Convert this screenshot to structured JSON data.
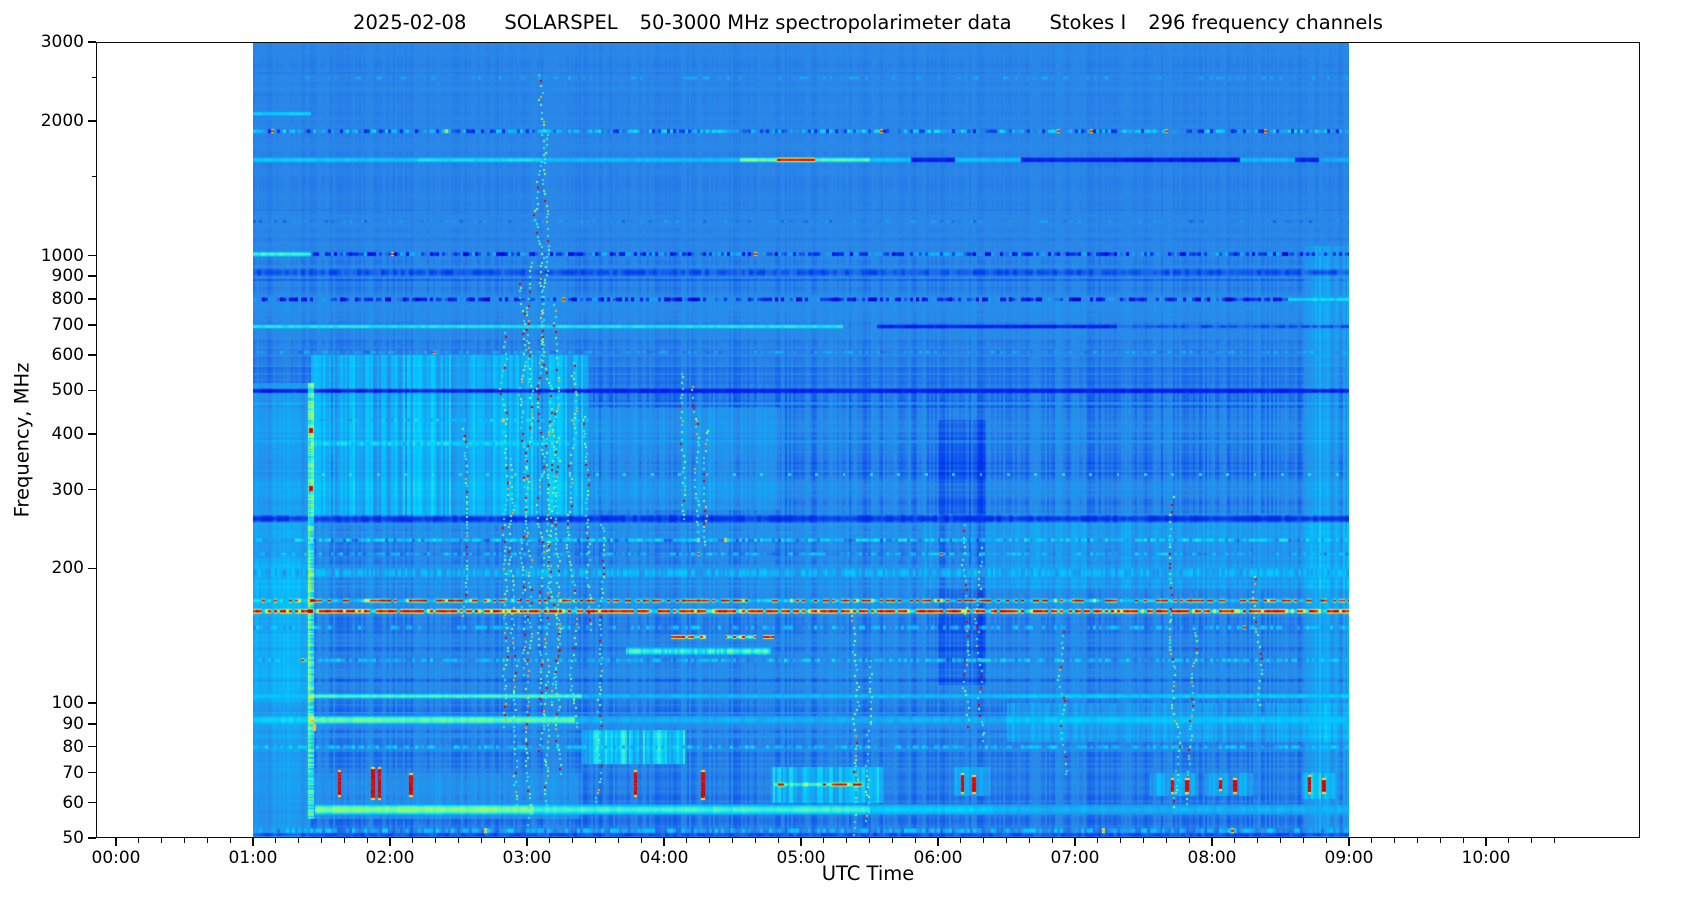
{
  "chart_data": {
    "type": "heatmap",
    "title_parts": [
      "2025-02-08",
      "SOLARSPEL",
      "50-3000 MHz spectropolarimeter data",
      "Stokes I",
      "296 frequency channels"
    ],
    "xlabel": "UTC Time",
    "ylabel": "Frequency, MHz",
    "x_tick_labels": [
      "00:00",
      "01:00",
      "02:00",
      "03:00",
      "04:00",
      "05:00",
      "06:00",
      "07:00",
      "08:00",
      "09:00",
      "10:00"
    ],
    "x_minor_step_minutes": 10,
    "y_tick_labels": [
      "3000",
      "2000",
      "1000",
      "900",
      "800",
      "700",
      "600",
      "500",
      "400",
      "300",
      "200",
      "100",
      "90",
      "80",
      "70",
      "60",
      "50"
    ],
    "y_minor_ticks": [
      2500,
      1500
    ],
    "y_scale": "log",
    "y_range": [
      50,
      3000
    ],
    "n_channels": 296,
    "data_time_range": [
      1.0,
      9.0
    ],
    "background_value": 0.25,
    "colormap_stops": [
      [
        0.0,
        "#00007f"
      ],
      [
        0.1,
        "#0000e0"
      ],
      [
        0.18,
        "#0038f0"
      ],
      [
        0.25,
        "#2b87e8"
      ],
      [
        0.32,
        "#15a8f5"
      ],
      [
        0.4,
        "#00d0ff"
      ],
      [
        0.48,
        "#40f0d8"
      ],
      [
        0.55,
        "#80ff80"
      ],
      [
        0.62,
        "#b8ff58"
      ],
      [
        0.7,
        "#ffe838"
      ],
      [
        0.78,
        "#ffa818"
      ],
      [
        0.86,
        "#ff5000"
      ],
      [
        0.94,
        "#e80000"
      ],
      [
        1.0,
        "#b00000"
      ]
    ],
    "bands": [
      {
        "f": 2500,
        "th": 3,
        "style": "speckle",
        "v": 0.31,
        "amp": 0.05,
        "den": 0.3,
        "rare": 0.012
      },
      {
        "f": 2080,
        "th": 4,
        "style": "segments",
        "segs": [
          [
            1.0,
            1.42,
            0.42
          ]
        ]
      },
      {
        "f": 1900,
        "th": 4,
        "style": "speckle",
        "v": 0.3,
        "amp": 0.17,
        "den": 0.9,
        "rare": 0.02
      },
      {
        "f": 1640,
        "th": 5,
        "style": "segments",
        "segs": [
          [
            1.0,
            2.2,
            0.4
          ],
          [
            2.2,
            3.1,
            0.44
          ],
          [
            3.1,
            4.55,
            0.37
          ],
          [
            4.55,
            4.82,
            0.55
          ],
          [
            4.82,
            5.1,
            0.96
          ],
          [
            5.1,
            5.5,
            0.52
          ],
          [
            5.5,
            5.8,
            0.4
          ],
          [
            5.8,
            6.12,
            0.13
          ],
          [
            6.12,
            6.6,
            0.38
          ],
          [
            6.6,
            7.25,
            0.13
          ],
          [
            7.25,
            8.2,
            0.11
          ],
          [
            8.2,
            8.6,
            0.36
          ],
          [
            8.6,
            8.78,
            0.14
          ],
          [
            8.78,
            9.0,
            0.33
          ]
        ]
      },
      {
        "f": 1195,
        "th": 3,
        "style": "speckle",
        "v": 0.27,
        "amp": 0.06,
        "den": 0.35,
        "rare": 0.003
      },
      {
        "f": 1010,
        "th": 4,
        "style": "speckle",
        "v": 0.22,
        "amp": 0.16,
        "den": 0.9,
        "rare": 0.006
      },
      {
        "f": 1010,
        "th": 5,
        "style": "segments",
        "segs": [
          [
            1.0,
            1.42,
            0.5
          ]
        ]
      },
      {
        "f": 919,
        "th": 8,
        "style": "segments",
        "segs": [
          [
            1.0,
            9.0,
            0.205
          ]
        ]
      },
      {
        "f": 800,
        "th": 4,
        "style": "speckle",
        "v": 0.17,
        "amp": 0.15,
        "den": 0.85,
        "rare": 0.005
      },
      {
        "f": 800,
        "th": 4,
        "style": "segments",
        "segs": [
          [
            8.55,
            9.0,
            0.44
          ]
        ]
      },
      {
        "f": 696,
        "th": 4,
        "style": "segments",
        "segs": [
          [
            1.0,
            5.3,
            0.46
          ],
          [
            5.55,
            7.3,
            0.14
          ],
          [
            7.3,
            9.0,
            0.21
          ]
        ]
      },
      {
        "f": 610,
        "th": 3,
        "style": "speckle",
        "v": 0.29,
        "amp": 0.07,
        "den": 0.5,
        "rare": 0.002
      },
      {
        "f": 500,
        "th": 5,
        "style": "segments",
        "segs": [
          [
            1.0,
            9.0,
            0.135
          ]
        ]
      },
      {
        "f": 430,
        "th": 3,
        "style": "speckle",
        "v": 0.36,
        "amp": 0.1,
        "den": 0.6,
        "rare": 0.004,
        "t0": 1.42,
        "t1": 3.45
      },
      {
        "f": 381,
        "th": 5,
        "style": "texture",
        "v": 0.4,
        "t0": 1.42,
        "t1": 3.3
      },
      {
        "f": 325,
        "th": 3,
        "style": "dots",
        "v": 0.47,
        "spacing": 0.2,
        "t0": 1.5,
        "t1": 9.0
      },
      {
        "f": 259,
        "th": 9,
        "style": "segments",
        "segs": [
          [
            1.0,
            9.0,
            0.175
          ]
        ]
      },
      {
        "f": 232,
        "th": 4,
        "style": "speckle",
        "v": 0.39,
        "amp": 0.09,
        "den": 0.8,
        "rare": 0.004
      },
      {
        "f": 216,
        "th": 3,
        "style": "speckle",
        "v": 0.34,
        "amp": 0.12,
        "den": 0.7,
        "rare": 0.006
      },
      {
        "f": 196,
        "th": 10,
        "style": "texture",
        "v": 0.335,
        "t0": 1.0,
        "t1": 9.0
      },
      {
        "f": 170,
        "th": 4,
        "style": "rfi",
        "vbg": 0.39,
        "vred": 0.94,
        "den": 0.5
      },
      {
        "f": 161,
        "th": 5,
        "style": "rfi",
        "vbg": 0.46,
        "vred": 0.94,
        "den": 0.8
      },
      {
        "f": 148,
        "th": 4,
        "style": "speckle",
        "v": 0.34,
        "amp": 0.1,
        "den": 0.6,
        "rare": 0.008
      },
      {
        "f": 141,
        "th": 4,
        "style": "rfi",
        "vbg": 0.5,
        "vred": 0.93,
        "den": 0.75,
        "segs": [
          [
            4.05,
            4.3
          ],
          [
            4.45,
            4.67
          ],
          [
            4.72,
            4.8
          ]
        ]
      },
      {
        "f": 131,
        "th": 8,
        "style": "texture",
        "v": 0.48,
        "t0": 3.72,
        "t1": 4.78
      },
      {
        "f": 125,
        "th": 4,
        "style": "speckle",
        "v": 0.36,
        "amp": 0.1,
        "den": 0.7,
        "rare": 0.01
      },
      {
        "f": 104,
        "th": 5,
        "style": "segments",
        "segs": [
          [
            1.0,
            1.42,
            0.38
          ],
          [
            1.42,
            3.4,
            0.51
          ],
          [
            3.4,
            6.5,
            0.36
          ],
          [
            6.5,
            9.0,
            0.4
          ]
        ]
      },
      {
        "f": 92,
        "th": 9,
        "style": "segments",
        "segs": [
          [
            1.0,
            1.42,
            0.42
          ],
          [
            1.42,
            3.35,
            0.53
          ],
          [
            3.35,
            6.5,
            0.34
          ],
          [
            6.5,
            9.0,
            0.385
          ]
        ]
      },
      {
        "f": 80,
        "th": 4,
        "style": "speckle",
        "v": 0.37,
        "amp": 0.08,
        "den": 0.6,
        "rare": 0.003
      },
      {
        "f": 66,
        "th": 4,
        "style": "rfi",
        "vbg": 0.5,
        "vred": 0.92,
        "den": 0.45,
        "segs": [
          [
            4.8,
            5.45
          ]
        ]
      },
      {
        "f": 58,
        "th": 11,
        "style": "segments",
        "segs": [
          [
            1.45,
            3.05,
            0.56
          ],
          [
            3.05,
            5.5,
            0.49
          ],
          [
            5.5,
            6.4,
            0.4
          ],
          [
            6.4,
            9.0,
            0.345
          ]
        ]
      },
      {
        "f": 52,
        "th": 6,
        "style": "speckle",
        "v": 0.33,
        "amp": 0.1,
        "den": 0.7,
        "rare": 0.006
      },
      {
        "f": 51,
        "th": 4,
        "style": "segments",
        "segs": [
          [
            1.0,
            9.0,
            0.2
          ]
        ]
      }
    ],
    "patches": [
      {
        "t0": 1.0,
        "t1": 1.42,
        "f0": 50,
        "f1": 520,
        "dv": 0.05,
        "stripe": 0.35
      },
      {
        "t0": 1.0,
        "t1": 1.42,
        "f0": 100,
        "f1": 210,
        "dv": 0.03,
        "stripe": 0.3
      },
      {
        "t0": 1.42,
        "t1": 3.45,
        "f0": 260,
        "f1": 600,
        "dv": 0.09,
        "stripe": 1.0
      },
      {
        "t0": 3.45,
        "t1": 4.85,
        "f0": 270,
        "f1": 460,
        "dv": 0.03,
        "stripe": 0.8
      },
      {
        "t0": 1.42,
        "t1": 3.4,
        "f0": 55,
        "f1": 70,
        "dv": 0.03,
        "stripe": 0.6
      },
      {
        "t0": 3.4,
        "t1": 4.15,
        "f0": 73,
        "f1": 87,
        "dv": 0.13,
        "stripe": 1.0
      },
      {
        "t0": 4.78,
        "t1": 5.6,
        "f0": 60,
        "f1": 72,
        "dv": 0.11,
        "stripe": 1.0
      },
      {
        "t0": 8.67,
        "t1": 9.0,
        "f0": 50,
        "f1": 1050,
        "dv": 0.055,
        "stripe": 1.0
      },
      {
        "t0": 6.0,
        "t1": 6.35,
        "f0": 110,
        "f1": 430,
        "dv": -0.035,
        "stripe": 0.4
      },
      {
        "t0": 5.9,
        "t1": 9.0,
        "f0": 180,
        "f1": 265,
        "dv": 0.028,
        "stripe": 0.9
      },
      {
        "t0": 6.5,
        "t1": 9.0,
        "f0": 82,
        "f1": 100,
        "dv": 0.05,
        "stripe": 0.9
      },
      {
        "t0": 6.12,
        "t1": 6.38,
        "f0": 62,
        "f1": 72,
        "dv": 0.06,
        "stripe": 1.0
      },
      {
        "t0": 7.55,
        "t1": 7.9,
        "f0": 62,
        "f1": 70,
        "dv": 0.07,
        "stripe": 1.0
      },
      {
        "t0": 7.95,
        "t1": 8.3,
        "f0": 62,
        "f1": 70,
        "dv": 0.06,
        "stripe": 1.0
      },
      {
        "t0": 8.65,
        "t1": 8.9,
        "f0": 61,
        "f1": 70,
        "dv": 0.08,
        "stripe": 1.0
      }
    ],
    "stripe": {
      "t": 1.425,
      "w": 6,
      "f0": 55,
      "f1": 520,
      "dv": 0.2,
      "red_dots": [
        407,
        302
      ]
    },
    "trails": [
      [
        2.52,
        160,
        420
      ],
      [
        2.83,
        90,
        700
      ],
      [
        2.88,
        60,
        360
      ],
      [
        2.95,
        120,
        900
      ],
      [
        3.02,
        55,
        1000
      ],
      [
        3.08,
        80,
        2600
      ],
      [
        3.14,
        60,
        1900
      ],
      [
        3.19,
        100,
        800
      ],
      [
        3.24,
        70,
        400
      ],
      [
        3.32,
        90,
        600
      ],
      [
        3.42,
        150,
        450
      ],
      [
        3.52,
        60,
        260
      ],
      [
        4.12,
        260,
        560
      ],
      [
        4.22,
        240,
        520
      ],
      [
        4.32,
        230,
        420
      ],
      [
        5.38,
        52,
        160
      ],
      [
        5.5,
        55,
        130
      ],
      [
        6.2,
        90,
        260
      ],
      [
        6.3,
        85,
        230
      ],
      [
        6.9,
        70,
        150
      ],
      [
        7.72,
        60,
        300
      ],
      [
        7.85,
        60,
        150
      ],
      [
        8.32,
        100,
        200
      ]
    ],
    "bursts": [
      [
        1.62,
        62,
        71
      ],
      [
        1.86,
        61,
        72
      ],
      [
        1.91,
        61,
        72
      ],
      [
        2.14,
        62,
        70
      ],
      [
        3.78,
        62,
        71
      ],
      [
        4.27,
        61,
        71
      ],
      [
        6.17,
        63,
        70
      ],
      [
        6.25,
        63,
        69
      ],
      [
        7.7,
        63,
        68
      ],
      [
        7.8,
        63,
        68
      ],
      [
        8.05,
        64,
        68
      ],
      [
        8.15,
        63,
        68
      ],
      [
        8.7,
        63,
        69
      ],
      [
        8.8,
        63,
        68
      ],
      [
        1.44,
        87,
        90,
        0.75
      ]
    ]
  }
}
